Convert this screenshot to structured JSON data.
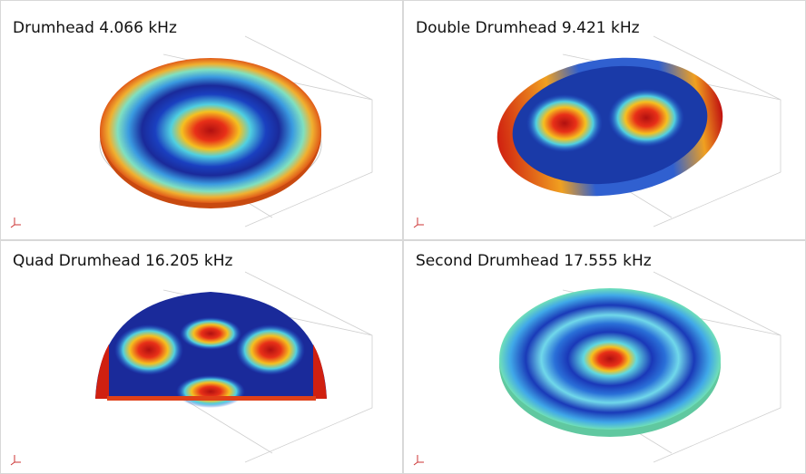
{
  "panels": [
    {
      "title": "Drumhead 4.066 kHz"
    },
    {
      "title": "Double Drumhead 9.421 kHz"
    },
    {
      "title": "Quad Drumhead 16.205 kHz"
    },
    {
      "title": "Second Drumhead 17.555 kHz"
    }
  ]
}
